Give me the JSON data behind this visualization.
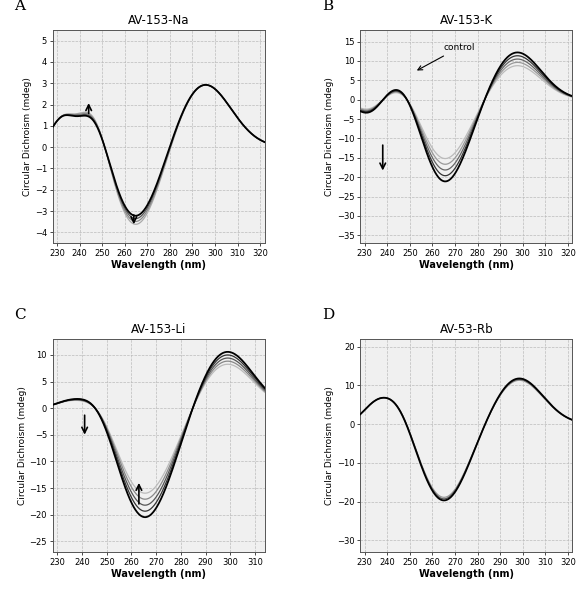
{
  "panels": [
    {
      "label": "A",
      "title": "AV-153-Na",
      "xlim": [
        228,
        322
      ],
      "ylim": [
        -4.5,
        5.5
      ],
      "yticks": [
        -4,
        -3,
        -2,
        -1,
        0,
        1,
        2,
        3,
        4,
        5
      ],
      "xticks": [
        230,
        240,
        250,
        260,
        270,
        280,
        290,
        300,
        310,
        320
      ],
      "n_curves": 4,
      "curve_type": "Na"
    },
    {
      "label": "B",
      "title": "AV-153-K",
      "xlim": [
        228,
        322
      ],
      "ylim": [
        -37,
        18
      ],
      "yticks": [
        -35,
        -30,
        -25,
        -20,
        -15,
        -10,
        -5,
        0,
        5,
        10,
        15
      ],
      "xticks": [
        230,
        240,
        250,
        260,
        270,
        280,
        290,
        300,
        310,
        320
      ],
      "n_curves": 5,
      "curve_type": "K"
    },
    {
      "label": "C",
      "title": "AV-153-Li",
      "xlim": [
        228,
        314
      ],
      "ylim": [
        -27,
        13
      ],
      "yticks": [
        -25,
        -20,
        -15,
        -10,
        -5,
        0,
        5,
        10
      ],
      "xticks": [
        230,
        240,
        250,
        260,
        270,
        280,
        290,
        300,
        310
      ],
      "n_curves": 5,
      "curve_type": "Li"
    },
    {
      "label": "D",
      "title": "AV-53-Rb",
      "xlim": [
        228,
        322
      ],
      "ylim": [
        -33,
        22
      ],
      "yticks": [
        -30,
        -20,
        -10,
        0,
        10,
        20
      ],
      "xticks": [
        230,
        240,
        250,
        260,
        270,
        280,
        290,
        300,
        310,
        320
      ],
      "n_curves": 3,
      "curve_type": "Rb"
    }
  ],
  "grid_color": "#bbbbbb",
  "grid_linestyle": "--",
  "bg_color": "#f0f0f0",
  "curve_colors_Na": [
    "#000000",
    "#555555",
    "#888888",
    "#aaaaaa"
  ],
  "curve_colors_K": [
    "#000000",
    "#333333",
    "#666666",
    "#999999",
    "#bbbbbb"
  ],
  "curve_colors_Li": [
    "#000000",
    "#333333",
    "#555555",
    "#888888",
    "#bbbbbb"
  ],
  "curve_colors_Rb": [
    "#000000",
    "#555555",
    "#999999"
  ]
}
